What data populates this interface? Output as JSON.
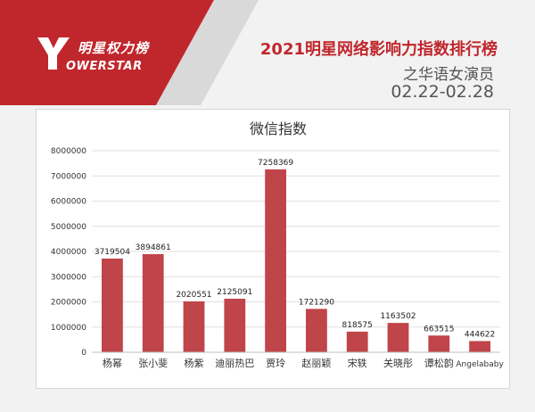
{
  "header": {
    "logo_cn": "明星权力榜",
    "logo_en": "OWERSTAR",
    "title": "2021明星网络影响力指数排行榜",
    "subtitle": "之华语女演员",
    "date_range": "02.22-02.28"
  },
  "colors": {
    "brand_red": "#c0272d",
    "bar": "#c0454a",
    "accent_dark": "#555555"
  },
  "chart_data": {
    "type": "bar",
    "title": "微信指数",
    "categories": [
      "杨幂",
      "张小斐",
      "杨紫",
      "迪丽热巴",
      "贾玲",
      "赵丽颖",
      "宋轶",
      "关晓彤",
      "谭松韵",
      "Angelababy"
    ],
    "values": [
      3719504,
      3894861,
      2020551,
      2125091,
      7258369,
      1721290,
      818575,
      1163502,
      663515,
      444622
    ],
    "ylim": [
      0,
      8000000
    ],
    "yticks": [
      0,
      1000000,
      2000000,
      3000000,
      4000000,
      5000000,
      6000000,
      7000000,
      8000000
    ],
    "grid": true,
    "legend": "none"
  }
}
